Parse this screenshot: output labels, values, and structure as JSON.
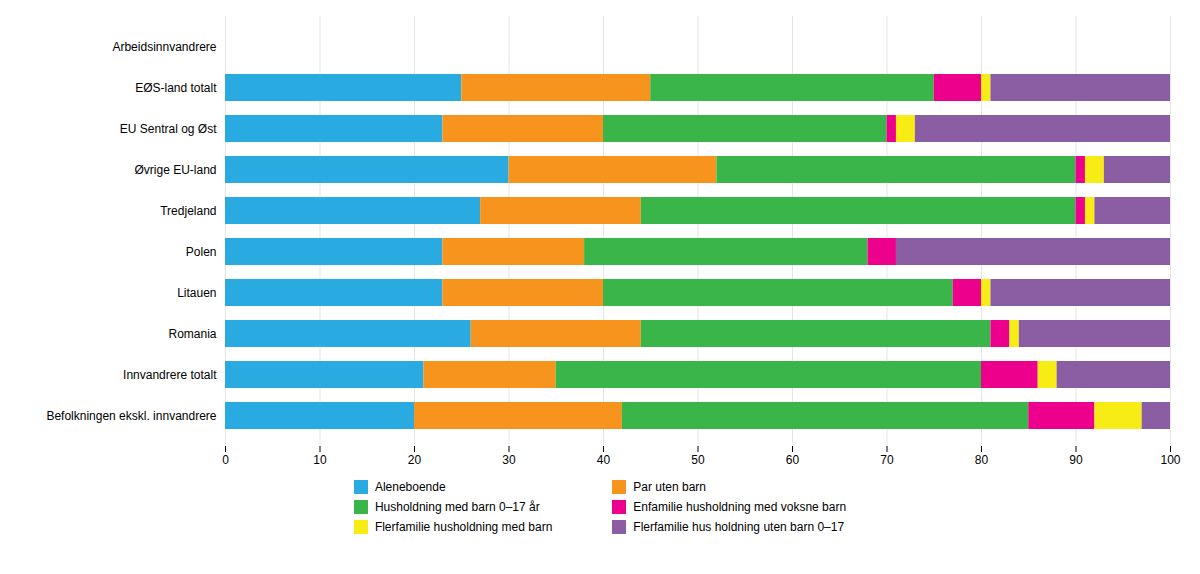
{
  "chart_data": {
    "type": "bar",
    "orientation": "horizontal",
    "stacked": true,
    "categories": [
      "Arbeidsinnvandrere",
      "EØS-land totalt",
      "EU Sentral og Øst",
      "Øvrige EU-land",
      "Tredjeland",
      "Polen",
      "Litauen",
      "Romania",
      "Innvandrere totalt",
      "Befolkningen ekskl. innvandrere"
    ],
    "series": [
      {
        "name": "Aleneboende",
        "color": "#29ABE2",
        "values": [
          0,
          25,
          23,
          30,
          27,
          23,
          23,
          26,
          21,
          20
        ]
      },
      {
        "name": "Par uten barn",
        "color": "#F7941D",
        "values": [
          0,
          20,
          17,
          22,
          17,
          15,
          17,
          18,
          14,
          22
        ]
      },
      {
        "name": "Husholdning med barn 0–17 år",
        "color": "#39B54A",
        "values": [
          0,
          30,
          30,
          38,
          46,
          30,
          37,
          37,
          45,
          43
        ]
      },
      {
        "name": "Enfamilie husholdning med voksne barn",
        "color": "#EC008C",
        "values": [
          0,
          5,
          1,
          1,
          1,
          3,
          3,
          2,
          6,
          7
        ]
      },
      {
        "name": "Flerfamilie husholdning med barn",
        "color": "#F7EC13",
        "values": [
          0,
          1,
          2,
          2,
          1,
          0,
          1,
          1,
          2,
          5
        ]
      },
      {
        "name": "Flerfamilie hus holdning uten barn 0–17",
        "color": "#8B5EA4",
        "values": [
          0,
          19,
          27,
          7,
          8,
          29,
          19,
          16,
          12,
          3
        ]
      }
    ],
    "xlim": [
      0,
      100
    ],
    "xticks": [
      0,
      10,
      20,
      30,
      40,
      50,
      60,
      70,
      80,
      90,
      100
    ],
    "grid": true,
    "legend": "bottom"
  }
}
